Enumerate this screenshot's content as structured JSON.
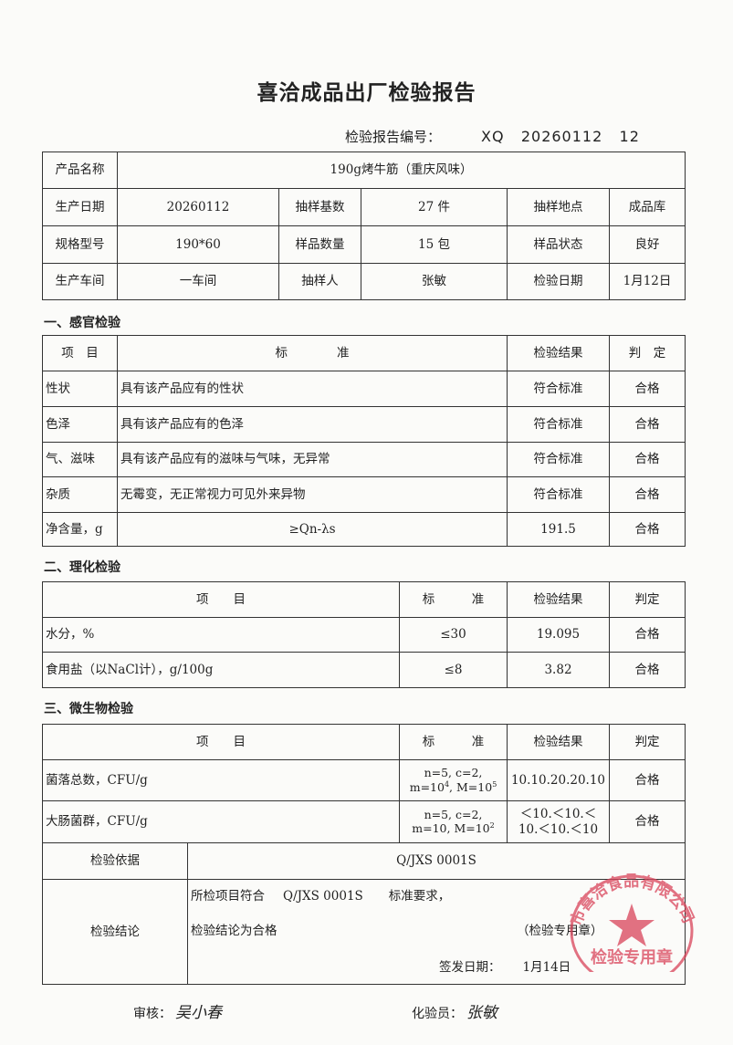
{
  "title": "喜洽成品出厂检验报告",
  "report_no": {
    "label": "检验报告编号：",
    "value": "XQ   20260112   12"
  },
  "info": {
    "product_name_label": "产品名称",
    "product_name": "190g烤牛筋（重庆风味）",
    "prod_date_label": "生产日期",
    "prod_date": "20260112",
    "sample_base_label": "抽样基数",
    "sample_base": "27 件",
    "sample_place_label": "抽样地点",
    "sample_place": "成品库",
    "spec_label": "规格型号",
    "spec": "190*60",
    "sample_qty_label": "样品数量",
    "sample_qty": "15 包",
    "sample_state_label": "样品状态",
    "sample_state": "良好",
    "workshop_label": "生产车间",
    "workshop": "一车间",
    "sampler_label": "抽样人",
    "sampler": "张敏",
    "test_date_label": "检验日期",
    "test_date": "1月12日"
  },
  "sensory": {
    "heading": "一、感官检验",
    "headers": [
      "项　目",
      "标　　　　准",
      "检验结果",
      "判　定"
    ],
    "rows": [
      [
        "性状",
        "具有该产品应有的性状",
        "符合标准",
        "合格"
      ],
      [
        "色泽",
        "具有该产品应有的色泽",
        "符合标准",
        "合格"
      ],
      [
        "气、滋味",
        "具有该产品应有的滋味与气味，无异常",
        "符合标准",
        "合格"
      ],
      [
        "杂质",
        "无霉变，无正常视力可见外来异物",
        "符合标准",
        "合格"
      ],
      [
        "净含量，g",
        "≥Qn-λs",
        "191.5",
        "合格"
      ]
    ]
  },
  "physchem": {
    "heading": "二、理化检验",
    "headers": [
      "项　　目",
      "标　　　准",
      "检验结果",
      "判定"
    ],
    "rows": [
      [
        "水分，%",
        "≤30",
        "19.095",
        "合格"
      ],
      [
        "食用盐（以NaCl计），g/100g",
        "≤8",
        "3.82",
        "合格"
      ]
    ]
  },
  "micro": {
    "heading": "三、微生物检验",
    "headers": [
      "项　　目",
      "标　　　准",
      "检验结果",
      "判定"
    ],
    "rows": [
      {
        "item": "菌落总数，CFU/g",
        "std1": "n=5, c=2,",
        "std2a": "m=10",
        "std2b": "4",
        "std2c": ", M=10",
        "std2d": "5",
        "result": "10.10.20.20.10",
        "judge": "合格"
      },
      {
        "item": "大肠菌群，CFU/g",
        "std1": "n=5, c=2,",
        "std2a": "m=10, M=10",
        "std2b": "2",
        "result": "＜10.＜10.＜ 10.＜10.＜10",
        "judge": "合格"
      }
    ],
    "basis_label": "检验依据",
    "basis": "Q/JXS 0001S",
    "conclusion_label": "检验结论",
    "conclusion_line1a": "所检项目符合",
    "conclusion_line1b": "Q/JXS 0001S",
    "conclusion_line1c": "标准要求，",
    "conclusion_line2": "检验结论为合格",
    "stamp_note": "（检验专用章）",
    "issue_label": "签发日期：",
    "issue_date": "1月14日"
  },
  "seal": {
    "text": "市喜洽食品有限公司",
    "center": "检验专用章",
    "color": "#d9435a"
  },
  "signatures": {
    "reviewer_label": "审核：",
    "reviewer": "吴小春",
    "tester_label": "化验员：",
    "tester": "张敏"
  }
}
